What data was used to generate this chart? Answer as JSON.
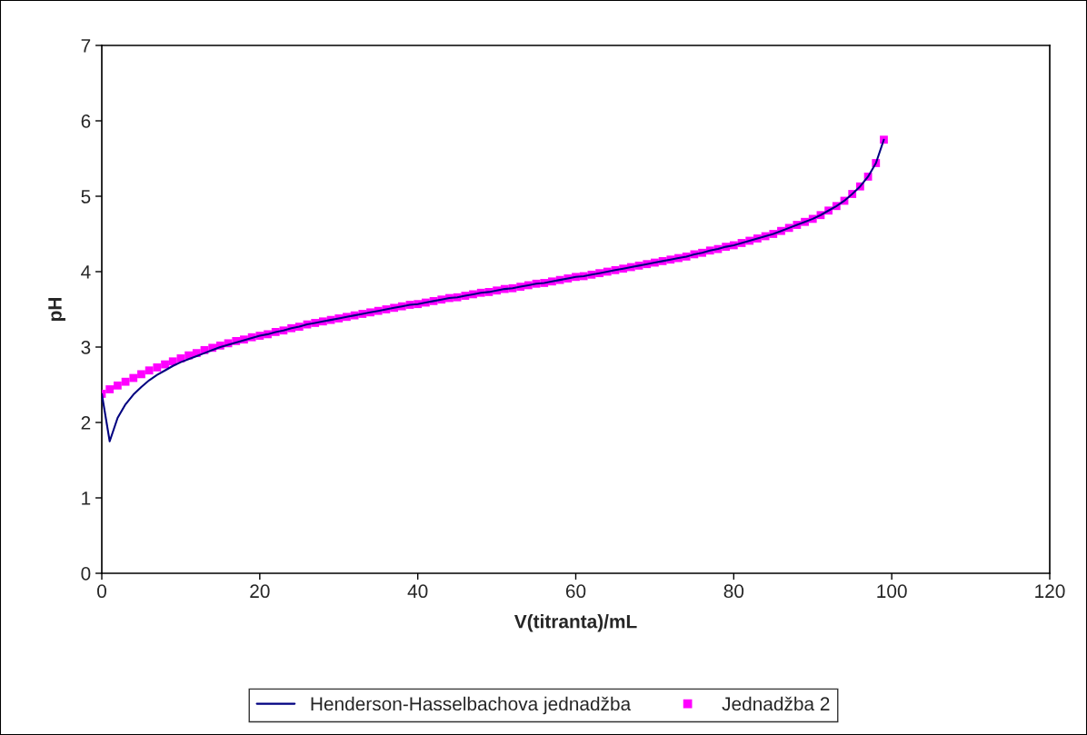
{
  "chart_data": {
    "type": "line",
    "xlabel": "V(titranta)/mL",
    "ylabel": "pH",
    "x": [
      0,
      1,
      2,
      3,
      4,
      5,
      6,
      7,
      8,
      9,
      10,
      11,
      12,
      13,
      14,
      15,
      16,
      17,
      18,
      19,
      20,
      21,
      22,
      23,
      24,
      25,
      26,
      27,
      28,
      29,
      30,
      31,
      32,
      33,
      34,
      35,
      36,
      37,
      38,
      39,
      40,
      41,
      42,
      43,
      44,
      45,
      46,
      47,
      48,
      49,
      50,
      51,
      52,
      53,
      54,
      55,
      56,
      57,
      58,
      59,
      60,
      61,
      62,
      63,
      64,
      65,
      66,
      67,
      68,
      69,
      70,
      71,
      72,
      73,
      74,
      75,
      76,
      77,
      78,
      79,
      80,
      81,
      82,
      83,
      84,
      85,
      86,
      87,
      88,
      89,
      90,
      91,
      92,
      93,
      94,
      95,
      96,
      97,
      98,
      99
    ],
    "series": [
      {
        "name": "Henderson-Hasselbachova jednadžba",
        "color": "#000080",
        "marker": "none",
        "line_style": "solid",
        "values": [
          2.38,
          1.75,
          2.06,
          2.24,
          2.37,
          2.47,
          2.56,
          2.63,
          2.69,
          2.75,
          2.8,
          2.84,
          2.88,
          2.92,
          2.96,
          3.0,
          3.03,
          3.06,
          3.09,
          3.12,
          3.15,
          3.17,
          3.2,
          3.22,
          3.25,
          3.27,
          3.3,
          3.32,
          3.34,
          3.36,
          3.38,
          3.4,
          3.42,
          3.44,
          3.46,
          3.48,
          3.5,
          3.52,
          3.54,
          3.56,
          3.57,
          3.59,
          3.61,
          3.63,
          3.65,
          3.66,
          3.68,
          3.7,
          3.72,
          3.73,
          3.75,
          3.77,
          3.78,
          3.8,
          3.82,
          3.84,
          3.85,
          3.87,
          3.89,
          3.91,
          3.93,
          3.94,
          3.96,
          3.98,
          4.0,
          4.02,
          4.04,
          4.06,
          4.08,
          4.1,
          4.12,
          4.14,
          4.16,
          4.18,
          4.2,
          4.23,
          4.25,
          4.28,
          4.3,
          4.33,
          4.35,
          4.38,
          4.41,
          4.44,
          4.47,
          4.5,
          4.54,
          4.58,
          4.62,
          4.66,
          4.7,
          4.75,
          4.81,
          4.87,
          4.94,
          5.03,
          5.13,
          5.26,
          5.44,
          5.75
        ]
      },
      {
        "name": "Jednadžba 2",
        "type": "scatter",
        "color": "#ff00ff",
        "marker": "square",
        "values": [
          2.38,
          2.44,
          2.49,
          2.54,
          2.59,
          2.64,
          2.69,
          2.73,
          2.77,
          2.81,
          2.85,
          2.89,
          2.92,
          2.96,
          2.99,
          3.02,
          3.05,
          3.08,
          3.1,
          3.13,
          3.15,
          3.17,
          3.2,
          3.22,
          3.25,
          3.27,
          3.3,
          3.32,
          3.34,
          3.36,
          3.38,
          3.4,
          3.42,
          3.44,
          3.46,
          3.48,
          3.5,
          3.52,
          3.54,
          3.56,
          3.57,
          3.59,
          3.61,
          3.63,
          3.65,
          3.66,
          3.68,
          3.7,
          3.72,
          3.73,
          3.75,
          3.77,
          3.78,
          3.8,
          3.82,
          3.84,
          3.85,
          3.87,
          3.89,
          3.91,
          3.93,
          3.94,
          3.96,
          3.98,
          4.0,
          4.02,
          4.04,
          4.06,
          4.08,
          4.1,
          4.12,
          4.14,
          4.16,
          4.18,
          4.2,
          4.23,
          4.25,
          4.28,
          4.3,
          4.33,
          4.35,
          4.38,
          4.41,
          4.44,
          4.47,
          4.5,
          4.54,
          4.58,
          4.62,
          4.66,
          4.7,
          4.75,
          4.81,
          4.87,
          4.94,
          5.03,
          5.13,
          5.26,
          5.44,
          5.75
        ]
      }
    ],
    "xlim": [
      0,
      120
    ],
    "xticks": [
      0,
      20,
      40,
      60,
      80,
      100,
      120
    ],
    "ylim": [
      0,
      7
    ],
    "yticks": [
      0,
      1,
      2,
      3,
      4,
      5,
      6,
      7
    ],
    "grid": false,
    "legend": "bottom"
  }
}
